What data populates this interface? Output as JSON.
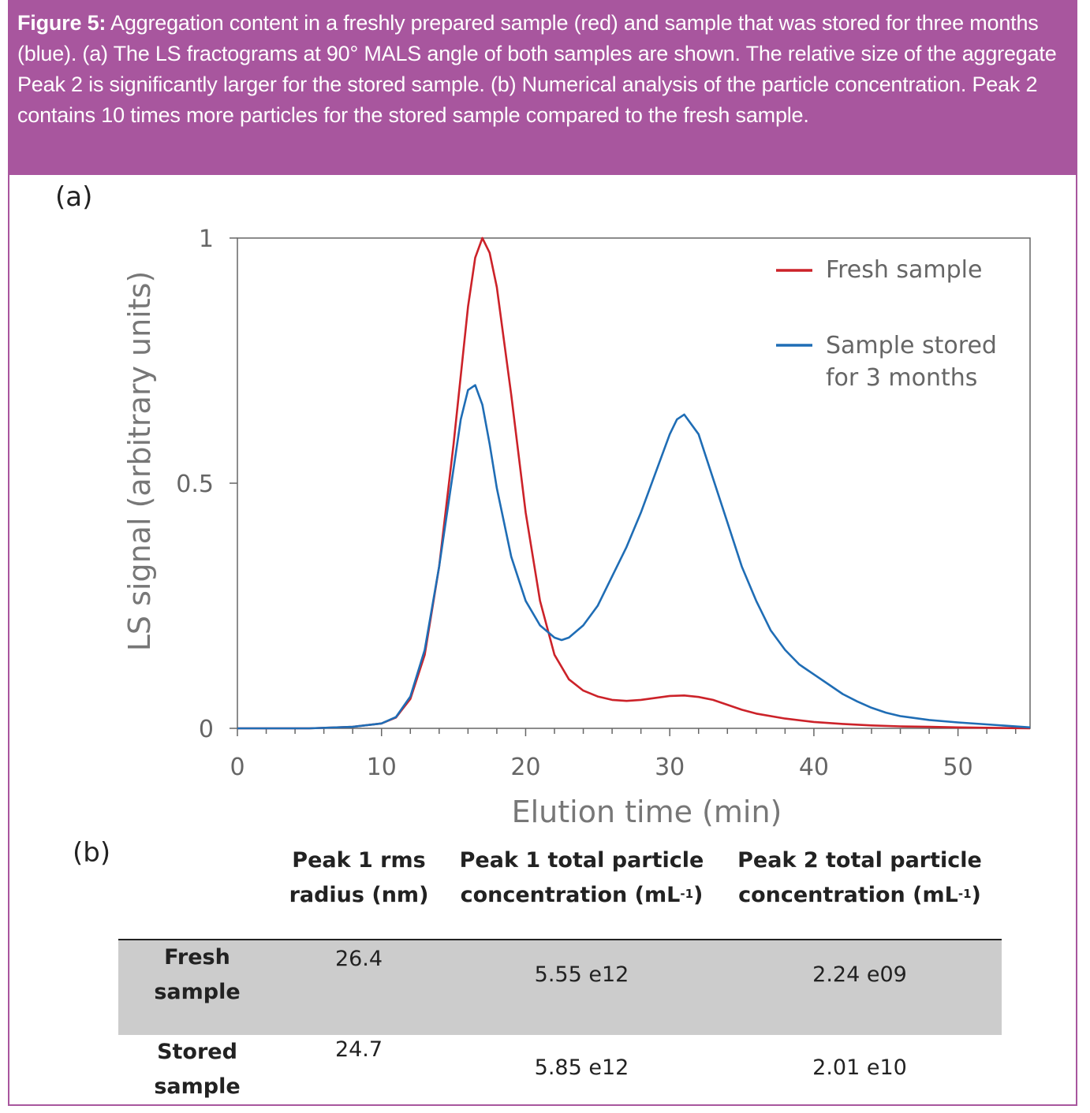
{
  "caption": {
    "label": "Figure 5:",
    "text": "Aggregation content in a freshly prepared sample (red) and sample that was stored for three months (blue). (a) The LS fractograms at 90° MALS angle of both samples are shown. The relative size of the aggregate Peak 2 is significantly larger for the stored sample. (b) Numerical analysis of the particle concentration. Peak 2 contains 10 times more particles for the stored sample compared to the fresh sample."
  },
  "panel_a_label": "(a)",
  "panel_b_label": "(b)",
  "colors": {
    "accent": "#a8569e",
    "fresh": "#cc2229",
    "stored": "#1f6db5",
    "table_shade": "#cccccc"
  },
  "chart_data": {
    "type": "line",
    "xlabel": "Elution time (min)",
    "ylabel": "LS signal (arbitrary units)",
    "xlim": [
      0,
      55
    ],
    "ylim": [
      0,
      1
    ],
    "xticks": [
      "0",
      "10",
      "20",
      "30",
      "40",
      "50"
    ],
    "yticks": [
      "0",
      "0.5",
      "1"
    ],
    "legend": {
      "placement": "top-right",
      "fresh_label": "Fresh sample",
      "stored_label_line1": "Sample stored",
      "stored_label_line2": "for 3 months"
    },
    "series": [
      {
        "name": "Fresh sample",
        "color": "#cc2229",
        "x": [
          0,
          5,
          8,
          10,
          11,
          12,
          13,
          14,
          15,
          16,
          16.5,
          17,
          17.5,
          18,
          19,
          20,
          21,
          22,
          23,
          24,
          25,
          26,
          27,
          28,
          29,
          30,
          31,
          32,
          33,
          34,
          35,
          36,
          38,
          40,
          42,
          44,
          46,
          48,
          50,
          55
        ],
        "y": [
          0,
          0,
          0.003,
          0.01,
          0.022,
          0.06,
          0.15,
          0.33,
          0.58,
          0.86,
          0.96,
          1.0,
          0.97,
          0.9,
          0.68,
          0.44,
          0.26,
          0.15,
          0.1,
          0.077,
          0.065,
          0.058,
          0.056,
          0.058,
          0.062,
          0.066,
          0.067,
          0.064,
          0.058,
          0.048,
          0.038,
          0.03,
          0.02,
          0.013,
          0.009,
          0.006,
          0.004,
          0.003,
          0.002,
          0.0
        ]
      },
      {
        "name": "Sample stored for 3 months",
        "color": "#1f6db5",
        "x": [
          0,
          5,
          8,
          10,
          11,
          12,
          13,
          14,
          15,
          15.5,
          16,
          16.5,
          17,
          17.5,
          18,
          19,
          20,
          21,
          22,
          22.5,
          23,
          24,
          25,
          26,
          27,
          28,
          29,
          30,
          30.5,
          31,
          32,
          33,
          34,
          35,
          36,
          37,
          38,
          39,
          40,
          41,
          42,
          43,
          44,
          45,
          46,
          48,
          50,
          52,
          55
        ],
        "y": [
          0,
          0,
          0.003,
          0.01,
          0.023,
          0.065,
          0.16,
          0.33,
          0.53,
          0.63,
          0.69,
          0.7,
          0.66,
          0.58,
          0.49,
          0.35,
          0.26,
          0.21,
          0.185,
          0.18,
          0.185,
          0.21,
          0.25,
          0.31,
          0.37,
          0.44,
          0.52,
          0.6,
          0.63,
          0.64,
          0.6,
          0.51,
          0.42,
          0.33,
          0.26,
          0.2,
          0.16,
          0.13,
          0.11,
          0.09,
          0.07,
          0.055,
          0.042,
          0.032,
          0.025,
          0.017,
          0.012,
          0.008,
          0.002
        ]
      }
    ]
  },
  "table": {
    "headers": [
      {
        "line1": "Peak 1 rms",
        "line2": "radius (nm)"
      },
      {
        "line1": "Peak 1 total particle",
        "line2": "concentration (mL",
        "sup": "-1",
        "close": ")"
      },
      {
        "line1": "Peak 2 total particle",
        "line2": "concentration (mL",
        "sup": "-1",
        "close": ")"
      }
    ],
    "rows": [
      {
        "name_line1": "Fresh",
        "name_line2": "sample",
        "radius": "26.4",
        "peak1": "5.55 e12",
        "peak2": "2.24 e09"
      },
      {
        "name_line1": "Stored",
        "name_line2": "sample",
        "radius": "24.7",
        "peak1": "5.85 e12",
        "peak2": "2.01 e10"
      }
    ]
  }
}
